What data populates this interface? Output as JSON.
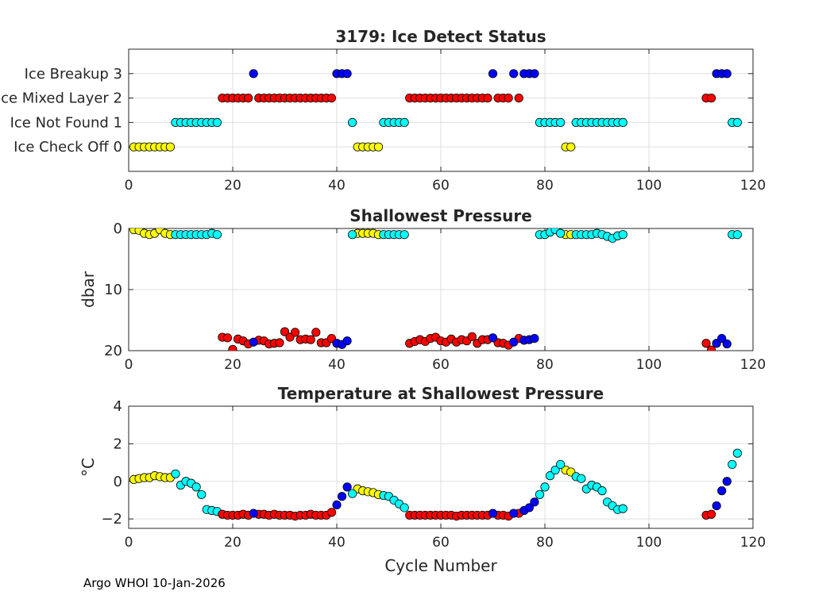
{
  "figure": {
    "footer": "Argo WHOI 10-Jan-2026",
    "colors": {
      "yellow": "#FFFF00",
      "cyan": "#00FFFF",
      "red": "#FF0000",
      "blue": "#0000FF",
      "axis": "#262626",
      "grid": "#DFDFDF"
    }
  },
  "chart_data": [
    {
      "type": "scatter",
      "title": "3179: Ice Detect Status",
      "xlabel": "",
      "ylabel": "",
      "xlim": [
        0,
        120
      ],
      "ylim": [
        -1,
        4
      ],
      "xticks": [
        0,
        20,
        40,
        60,
        80,
        100,
        120
      ],
      "yticks": [
        0,
        1,
        2,
        3
      ],
      "ytick_labels": [
        "Ice Check Off 0",
        "Ice Not Found 1",
        "Ice Mixed Layer 2",
        "Ice Breakup 3"
      ],
      "grid": true,
      "series": [
        {
          "name": "Ice Check Off 0",
          "color": "yellow",
          "x": [
            1,
            2,
            3,
            4,
            5,
            6,
            7,
            8,
            44,
            45,
            46,
            47,
            48,
            84,
            85
          ],
          "y": [
            0,
            0,
            0,
            0,
            0,
            0,
            0,
            0,
            0,
            0,
            0,
            0,
            0,
            0,
            0
          ]
        },
        {
          "name": "Ice Not Found 1",
          "color": "cyan",
          "x": [
            9,
            10,
            11,
            12,
            13,
            14,
            15,
            16,
            17,
            43,
            49,
            50,
            51,
            52,
            53,
            79,
            80,
            81,
            82,
            83,
            86,
            87,
            88,
            89,
            90,
            91,
            92,
            93,
            94,
            95,
            116,
            117
          ],
          "y": [
            1,
            1,
            1,
            1,
            1,
            1,
            1,
            1,
            1,
            1,
            1,
            1,
            1,
            1,
            1,
            1,
            1,
            1,
            1,
            1,
            1,
            1,
            1,
            1,
            1,
            1,
            1,
            1,
            1,
            1,
            1,
            1
          ]
        },
        {
          "name": "Ice Mixed Layer 2",
          "color": "red",
          "x": [
            18,
            19,
            20,
            21,
            22,
            23,
            25,
            26,
            27,
            28,
            29,
            30,
            31,
            32,
            33,
            34,
            35,
            36,
            37,
            38,
            39,
            54,
            55,
            56,
            57,
            58,
            59,
            60,
            61,
            62,
            63,
            64,
            65,
            66,
            67,
            68,
            69,
            71,
            72,
            73,
            75,
            111,
            112
          ],
          "y": [
            2,
            2,
            2,
            2,
            2,
            2,
            2,
            2,
            2,
            2,
            2,
            2,
            2,
            2,
            2,
            2,
            2,
            2,
            2,
            2,
            2,
            2,
            2,
            2,
            2,
            2,
            2,
            2,
            2,
            2,
            2,
            2,
            2,
            2,
            2,
            2,
            2,
            2,
            2,
            2,
            2,
            2,
            2
          ]
        },
        {
          "name": "Ice Breakup 3",
          "color": "blue",
          "x": [
            24,
            40,
            41,
            42,
            70,
            74,
            76,
            77,
            78,
            113,
            114,
            115
          ],
          "y": [
            3,
            3,
            3,
            3,
            3,
            3,
            3,
            3,
            3,
            3,
            3,
            3
          ]
        }
      ]
    },
    {
      "type": "scatter",
      "title": "Shallowest Pressure",
      "xlabel": "",
      "ylabel": "dbar",
      "xlim": [
        0,
        120
      ],
      "ylim": [
        0,
        20
      ],
      "y_reversed": true,
      "xticks": [
        0,
        20,
        40,
        60,
        80,
        100,
        120
      ],
      "yticks": [
        0,
        10,
        20
      ],
      "grid": true,
      "series": [
        {
          "name": "Ice Check Off 0",
          "color": "yellow",
          "x": [
            1,
            2,
            3,
            4,
            5,
            6,
            7,
            8,
            44,
            45,
            46,
            47,
            48,
            84,
            85
          ],
          "y": [
            0.2,
            0.3,
            0.8,
            1.0,
            0.8,
            0.2,
            0.8,
            1.0,
            0.8,
            0.8,
            0.8,
            0.8,
            1.0,
            1.0,
            1.0
          ]
        },
        {
          "name": "Ice Not Found 1",
          "color": "cyan",
          "x": [
            9,
            10,
            11,
            12,
            13,
            14,
            15,
            16,
            17,
            43,
            49,
            50,
            51,
            52,
            53,
            79,
            80,
            81,
            82,
            83,
            86,
            87,
            88,
            89,
            90,
            91,
            92,
            93,
            94,
            95,
            116,
            117
          ],
          "y": [
            1.0,
            1.0,
            1.0,
            1.0,
            1.0,
            1.0,
            1.0,
            0.8,
            1.0,
            1.0,
            1.0,
            1.0,
            1.0,
            1.0,
            1.0,
            1.0,
            1.0,
            0.6,
            0.2,
            0.8,
            1.0,
            1.0,
            1.0,
            1.0,
            0.8,
            1.0,
            1.3,
            1.6,
            1.2,
            1.0,
            1.0,
            1.0
          ]
        },
        {
          "name": "Ice Mixed Layer 2",
          "color": "red",
          "x": [
            18,
            19,
            20,
            21,
            22,
            23,
            25,
            26,
            27,
            28,
            29,
            30,
            31,
            32,
            33,
            34,
            35,
            36,
            37,
            38,
            39,
            54,
            55,
            56,
            57,
            58,
            59,
            60,
            61,
            62,
            63,
            64,
            65,
            66,
            67,
            68,
            69,
            71,
            72,
            73,
            75,
            111,
            112
          ],
          "y": [
            17.8,
            17.9,
            19.8,
            18.1,
            18.4,
            18.9,
            18.3,
            18.4,
            18.9,
            18.8,
            18.7,
            16.9,
            17.8,
            17.0,
            18.2,
            18.1,
            18.2,
            17.0,
            18.7,
            18.7,
            18.0,
            18.8,
            18.5,
            18.2,
            18.5,
            18.0,
            17.8,
            18.4,
            18.6,
            18.1,
            18.6,
            18.2,
            18.4,
            17.7,
            18.8,
            18.2,
            18.2,
            18.7,
            18.8,
            19.1,
            18.0,
            18.8,
            19.9
          ]
        },
        {
          "name": "Ice Breakup 3",
          "color": "blue",
          "x": [
            24,
            40,
            41,
            42,
            70,
            74,
            76,
            77,
            78,
            113,
            114,
            115
          ],
          "y": [
            18.6,
            18.8,
            19.0,
            18.4,
            17.9,
            18.6,
            18.3,
            18.2,
            18.0,
            18.8,
            18.0,
            18.9
          ]
        }
      ]
    },
    {
      "type": "scatter",
      "title": "Temperature at Shallowest Pressure",
      "xlabel": "Cycle Number",
      "ylabel": "°C",
      "xlim": [
        0,
        120
      ],
      "ylim": [
        -2.5,
        4
      ],
      "xticks": [
        0,
        20,
        40,
        60,
        80,
        100,
        120
      ],
      "yticks": [
        -2,
        0,
        2,
        4
      ],
      "grid": true,
      "series": [
        {
          "name": "Ice Check Off 0",
          "color": "yellow",
          "x": [
            1,
            2,
            3,
            4,
            5,
            6,
            7,
            8,
            44,
            45,
            46,
            47,
            48,
            84,
            85
          ],
          "y": [
            0.1,
            0.15,
            0.2,
            0.2,
            0.3,
            0.25,
            0.2,
            0.2,
            -0.4,
            -0.5,
            -0.55,
            -0.6,
            -0.7,
            0.6,
            0.5
          ]
        },
        {
          "name": "Ice Not Found 1",
          "color": "cyan",
          "x": [
            9,
            10,
            11,
            12,
            13,
            14,
            15,
            16,
            17,
            43,
            49,
            50,
            51,
            52,
            53,
            79,
            80,
            81,
            82,
            83,
            86,
            87,
            88,
            89,
            90,
            91,
            92,
            93,
            94,
            95,
            116,
            117
          ],
          "y": [
            0.4,
            -0.2,
            0.0,
            -0.1,
            -0.3,
            -0.7,
            -1.5,
            -1.55,
            -1.6,
            -0.65,
            -0.75,
            -0.8,
            -1.0,
            -1.2,
            -1.4,
            -0.7,
            -0.3,
            0.3,
            0.6,
            0.9,
            0.25,
            0.15,
            -0.4,
            -0.2,
            -0.3,
            -0.5,
            -1.1,
            -1.3,
            -1.5,
            -1.45,
            0.9,
            1.5
          ]
        },
        {
          "name": "Ice Mixed Layer 2",
          "color": "red",
          "x": [
            18,
            19,
            20,
            21,
            22,
            23,
            25,
            26,
            27,
            28,
            29,
            30,
            31,
            32,
            33,
            34,
            35,
            36,
            37,
            38,
            39,
            54,
            55,
            56,
            57,
            58,
            59,
            60,
            61,
            62,
            63,
            64,
            65,
            66,
            67,
            68,
            69,
            71,
            72,
            73,
            75,
            111,
            112
          ],
          "y": [
            -1.75,
            -1.8,
            -1.8,
            -1.8,
            -1.75,
            -1.8,
            -1.75,
            -1.75,
            -1.8,
            -1.75,
            -1.8,
            -1.8,
            -1.8,
            -1.85,
            -1.8,
            -1.8,
            -1.75,
            -1.8,
            -1.8,
            -1.8,
            -1.65,
            -1.8,
            -1.8,
            -1.8,
            -1.8,
            -1.8,
            -1.8,
            -1.8,
            -1.8,
            -1.8,
            -1.85,
            -1.8,
            -1.8,
            -1.8,
            -1.8,
            -1.8,
            -1.8,
            -1.8,
            -1.8,
            -1.85,
            -1.7,
            -1.8,
            -1.75
          ]
        },
        {
          "name": "Ice Breakup 3",
          "color": "blue",
          "x": [
            24,
            40,
            41,
            42,
            70,
            74,
            76,
            77,
            78,
            113,
            114,
            115
          ],
          "y": [
            -1.7,
            -1.25,
            -0.8,
            -0.3,
            -1.7,
            -1.7,
            -1.55,
            -1.4,
            -1.1,
            -1.3,
            -0.5,
            0.0
          ]
        }
      ]
    }
  ]
}
